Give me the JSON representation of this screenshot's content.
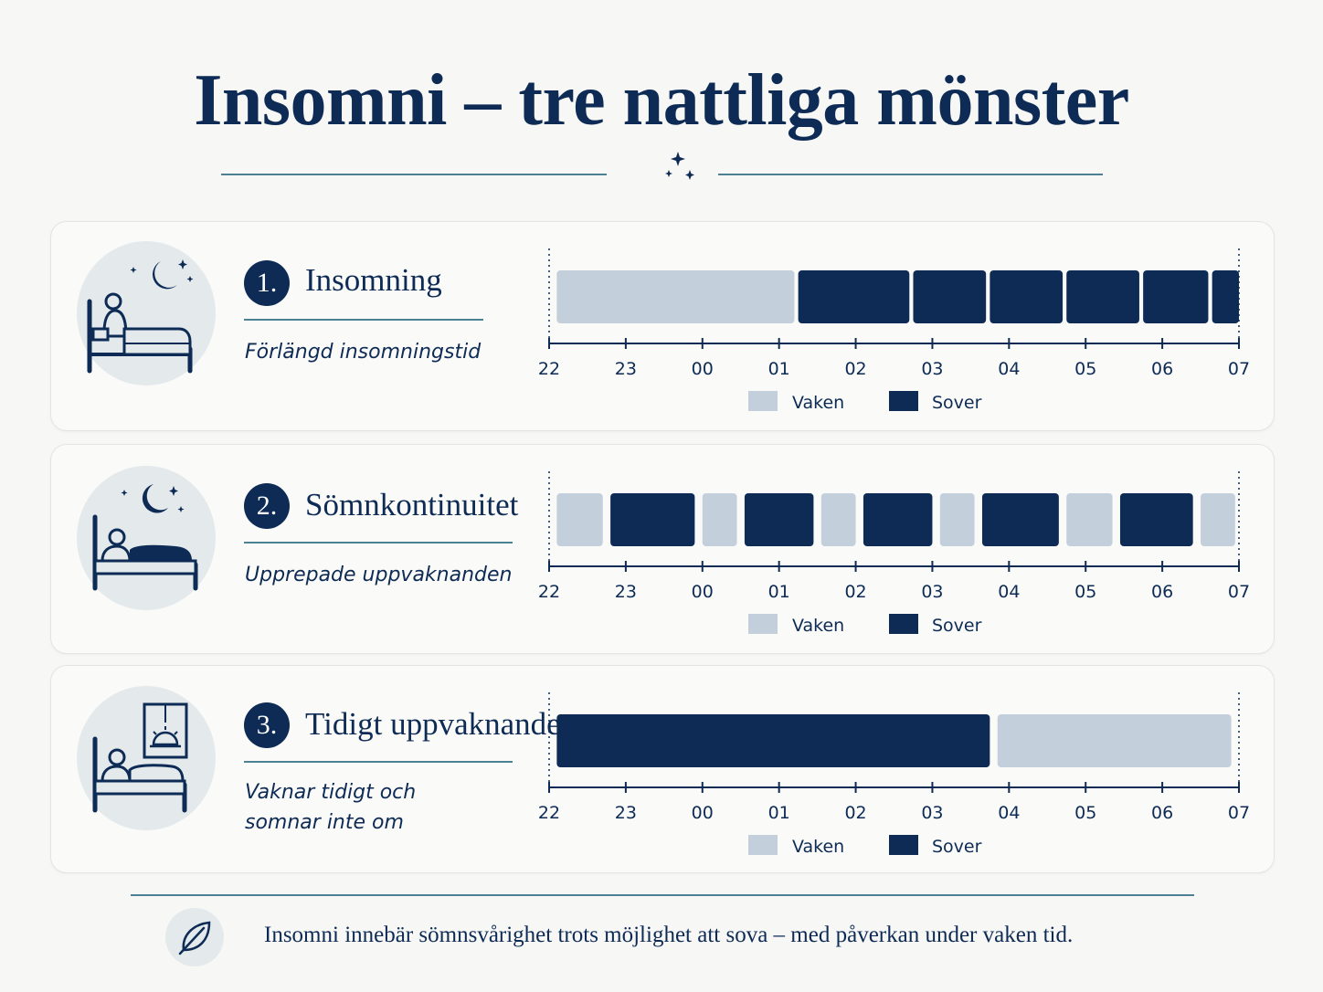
{
  "title": "Insomni – tre nattliga mönster",
  "colors": {
    "awake": "#c3d0dc",
    "asleep": "#0d2b55",
    "accent_line": "#4d8092",
    "icon_bg": "#e4e9ec"
  },
  "header_icon": "moon-stars-icon",
  "legend": {
    "awake_label": "Vaken",
    "asleep_label": "Sover"
  },
  "patterns": [
    {
      "number": "1.",
      "title": "Insomning",
      "subtitle": "Förlängd insomningstid",
      "icon": "person-sitting-in-bed-at-night-icon"
    },
    {
      "number": "2.",
      "title": "Sömnkontinuitet",
      "subtitle": "Upprepade uppvaknanden",
      "icon": "person-lying-in-bed-at-night-icon"
    },
    {
      "number": "3.",
      "title": "Tidigt uppvaknande",
      "subtitle": "Vaknar tidigt och\nsomnar inte om",
      "icon": "person-in-bed-sunrise-window-icon"
    }
  ],
  "chart_data": [
    {
      "type": "bar",
      "orientation": "horizontal-timeline",
      "x_ticks": [
        "22",
        "23",
        "00",
        "01",
        "02",
        "03",
        "04",
        "05",
        "06",
        "07"
      ],
      "x_range_hours": [
        0,
        9
      ],
      "segments": [
        {
          "state": "Vaken",
          "start": 0.1,
          "end": 3.2
        },
        {
          "state": "Sover",
          "start": 3.25,
          "end": 4.7
        },
        {
          "state": "Sover",
          "start": 4.75,
          "end": 5.7
        },
        {
          "state": "Sover",
          "start": 5.75,
          "end": 6.7
        },
        {
          "state": "Sover",
          "start": 6.75,
          "end": 7.7
        },
        {
          "state": "Sover",
          "start": 7.75,
          "end": 8.6
        },
        {
          "state": "Sover",
          "start": 8.65,
          "end": 9.0
        }
      ],
      "legend": [
        "Vaken",
        "Sover"
      ]
    },
    {
      "type": "bar",
      "orientation": "horizontal-timeline",
      "x_ticks": [
        "22",
        "23",
        "00",
        "01",
        "02",
        "03",
        "04",
        "05",
        "06",
        "07"
      ],
      "x_range_hours": [
        0,
        9
      ],
      "segments": [
        {
          "state": "Vaken",
          "start": 0.1,
          "end": 0.7
        },
        {
          "state": "Sover",
          "start": 0.8,
          "end": 1.9
        },
        {
          "state": "Vaken",
          "start": 2.0,
          "end": 2.45
        },
        {
          "state": "Sover",
          "start": 2.55,
          "end": 3.45
        },
        {
          "state": "Vaken",
          "start": 3.55,
          "end": 4.0
        },
        {
          "state": "Sover",
          "start": 4.1,
          "end": 5.0
        },
        {
          "state": "Vaken",
          "start": 5.1,
          "end": 5.55
        },
        {
          "state": "Sover",
          "start": 5.65,
          "end": 6.65
        },
        {
          "state": "Vaken",
          "start": 6.75,
          "end": 7.35
        },
        {
          "state": "Sover",
          "start": 7.45,
          "end": 8.4
        },
        {
          "state": "Vaken",
          "start": 8.5,
          "end": 8.95
        }
      ],
      "legend": [
        "Vaken",
        "Sover"
      ]
    },
    {
      "type": "bar",
      "orientation": "horizontal-timeline",
      "x_ticks": [
        "22",
        "23",
        "00",
        "01",
        "02",
        "03",
        "04",
        "05",
        "06",
        "07"
      ],
      "x_range_hours": [
        0,
        9
      ],
      "segments": [
        {
          "state": "Sover",
          "start": 0.1,
          "end": 5.75
        },
        {
          "state": "Vaken",
          "start": 5.85,
          "end": 8.9
        }
      ],
      "legend": [
        "Vaken",
        "Sover"
      ]
    }
  ],
  "footer": {
    "icon": "leaf-icon",
    "text": "Insomni innebär sömnsvårighet trots möjlighet att sova – med påverkan under vaken tid."
  }
}
